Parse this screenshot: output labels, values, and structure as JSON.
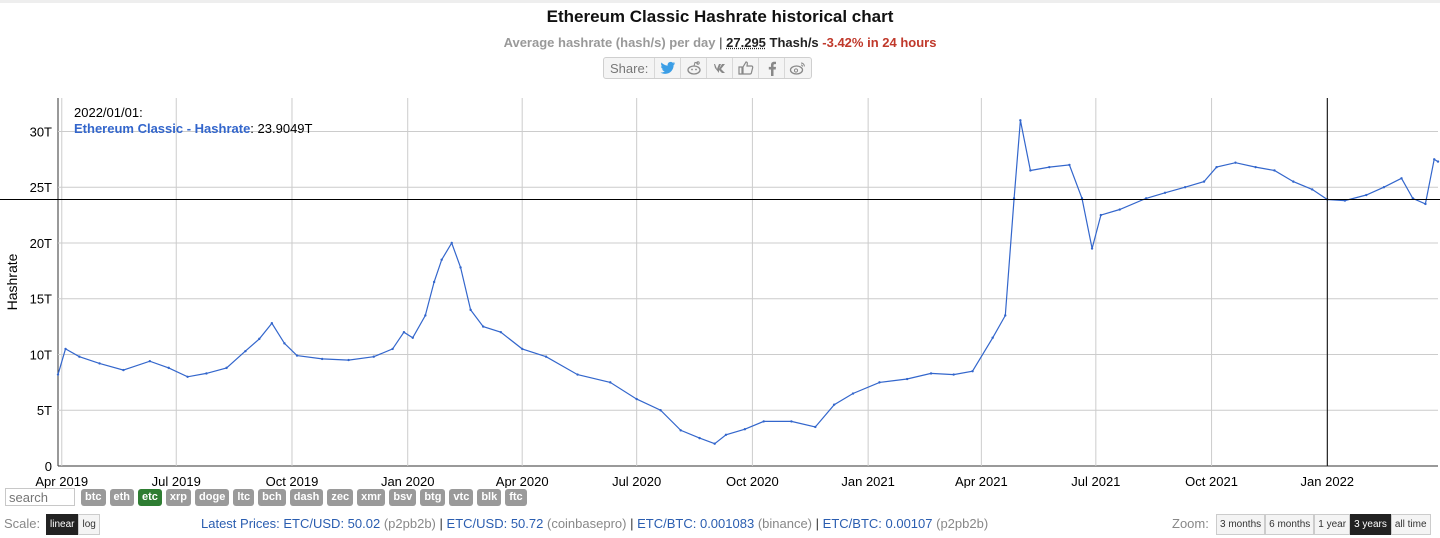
{
  "header": {
    "title": "Ethereum Classic Hashrate historical chart",
    "subtitle_prefix": "Average hashrate (hash/s) per day",
    "separator": "|",
    "value": "27.295",
    "unit": "Thash/s",
    "change": "-3.42% in 24 hours"
  },
  "share": {
    "label": "Share:",
    "icons": [
      "twitter-icon",
      "reddit-icon",
      "vk-icon",
      "like-icon",
      "facebook-icon",
      "weibo-icon"
    ]
  },
  "tooltip": {
    "date": "2022/01/01:",
    "series": "Ethereum Classic - Hashrate",
    "value": "23.9049T"
  },
  "chart_data": {
    "type": "line",
    "title": "Ethereum Classic Hashrate historical chart",
    "ylabel": "Hashrate",
    "xlabel": "",
    "ylim": [
      0,
      33
    ],
    "y_ticks": [
      "0",
      "5T",
      "10T",
      "15T",
      "20T",
      "25T",
      "30T"
    ],
    "y_tick_values": [
      0,
      5,
      10,
      15,
      20,
      25,
      30
    ],
    "x_ticks": [
      "Apr 2019",
      "Jul 2019",
      "Oct 2019",
      "Jan 2020",
      "Apr 2020",
      "Jul 2020",
      "Oct 2020",
      "Jan 2021",
      "Apr 2021",
      "Jul 2021",
      "Oct 2021",
      "Jan 2022"
    ],
    "x_tick_dates": [
      "2019-04-01",
      "2019-07-01",
      "2019-10-01",
      "2020-01-01",
      "2020-04-01",
      "2020-07-01",
      "2020-10-01",
      "2021-01-01",
      "2021-04-01",
      "2021-07-01",
      "2021-10-01",
      "2022-01-01"
    ],
    "x_range": [
      "2019-03-29",
      "2022-03-30"
    ],
    "crosshair": {
      "x": "2022-01-01",
      "y": 23.9
    },
    "grid": true,
    "color": "#3366cc",
    "series": [
      {
        "name": "Ethereum Classic - Hashrate",
        "x": [
          "2019-03-29",
          "2019-04-04",
          "2019-04-15",
          "2019-05-01",
          "2019-05-20",
          "2019-06-10",
          "2019-06-25",
          "2019-07-10",
          "2019-07-25",
          "2019-08-10",
          "2019-08-25",
          "2019-09-05",
          "2019-09-15",
          "2019-09-25",
          "2019-10-05",
          "2019-10-25",
          "2019-11-15",
          "2019-12-05",
          "2019-12-20",
          "2019-12-29",
          "2020-01-05",
          "2020-01-15",
          "2020-01-22",
          "2020-01-28",
          "2020-02-05",
          "2020-02-12",
          "2020-02-20",
          "2020-03-01",
          "2020-03-15",
          "2020-04-01",
          "2020-04-20",
          "2020-05-15",
          "2020-06-10",
          "2020-07-01",
          "2020-07-20",
          "2020-08-05",
          "2020-08-20",
          "2020-09-01",
          "2020-09-10",
          "2020-09-25",
          "2020-10-10",
          "2020-11-01",
          "2020-11-20",
          "2020-12-05",
          "2020-12-20",
          "2021-01-10",
          "2021-02-01",
          "2021-02-20",
          "2021-03-10",
          "2021-03-25",
          "2021-04-10",
          "2021-04-20",
          "2021-04-27",
          "2021-05-02",
          "2021-05-10",
          "2021-05-25",
          "2021-06-10",
          "2021-06-20",
          "2021-06-28",
          "2021-07-05",
          "2021-07-20",
          "2021-08-10",
          "2021-08-25",
          "2021-09-10",
          "2021-09-25",
          "2021-10-05",
          "2021-10-20",
          "2021-11-05",
          "2021-11-20",
          "2021-12-05",
          "2021-12-20",
          "2022-01-01",
          "2022-01-15",
          "2022-02-01",
          "2022-02-15",
          "2022-03-01",
          "2022-03-10",
          "2022-03-20",
          "2022-03-27",
          "2022-03-30"
        ],
        "values": [
          8.2,
          10.5,
          9.8,
          9.2,
          8.6,
          9.4,
          8.8,
          8.0,
          8.3,
          8.8,
          10.3,
          11.4,
          12.8,
          11.0,
          9.9,
          9.6,
          9.5,
          9.8,
          10.5,
          12.0,
          11.5,
          13.5,
          16.5,
          18.5,
          20.0,
          17.8,
          14.0,
          12.5,
          12.0,
          10.5,
          9.8,
          8.2,
          7.5,
          6.0,
          5.0,
          3.2,
          2.5,
          2.0,
          2.8,
          3.3,
          4.0,
          4.0,
          3.5,
          5.5,
          6.5,
          7.5,
          7.8,
          8.3,
          8.2,
          8.5,
          11.5,
          13.5,
          24.0,
          31.0,
          26.5,
          26.8,
          27.0,
          24.0,
          19.5,
          22.5,
          23.0,
          24.0,
          24.5,
          25.0,
          25.5,
          26.8,
          27.2,
          26.8,
          26.5,
          25.5,
          24.8,
          23.9,
          23.8,
          24.3,
          25.0,
          25.8,
          24.0,
          23.5,
          27.5,
          27.3
        ]
      }
    ]
  },
  "coins": {
    "search_placeholder": "search",
    "items": [
      "btc",
      "eth",
      "etc",
      "xrp",
      "doge",
      "ltc",
      "bch",
      "dash",
      "zec",
      "xmr",
      "bsv",
      "btg",
      "vtc",
      "blk",
      "ftc"
    ],
    "active": "etc",
    "active_color": "#2e7d32"
  },
  "footer": {
    "scale_label": "Scale:",
    "scale_options": [
      "linear",
      "log"
    ],
    "scale_active": "linear",
    "latest_prices_label": "Latest Prices:",
    "prices": [
      {
        "pair": "ETC/USD: 50.02",
        "source": "(p2pb2b)"
      },
      {
        "pair": "ETC/USD: 50.72",
        "source": "(coinbasepro)"
      },
      {
        "pair": "ETC/BTC: 0.001083",
        "source": "(binance)"
      },
      {
        "pair": "ETC/BTC: 0.00107",
        "source": "(p2pb2b)"
      }
    ],
    "zoom_label": "Zoom:",
    "zoom_options": [
      "3 months",
      "6 months",
      "1 year",
      "3 years",
      "all time"
    ],
    "zoom_active": "3 years"
  }
}
